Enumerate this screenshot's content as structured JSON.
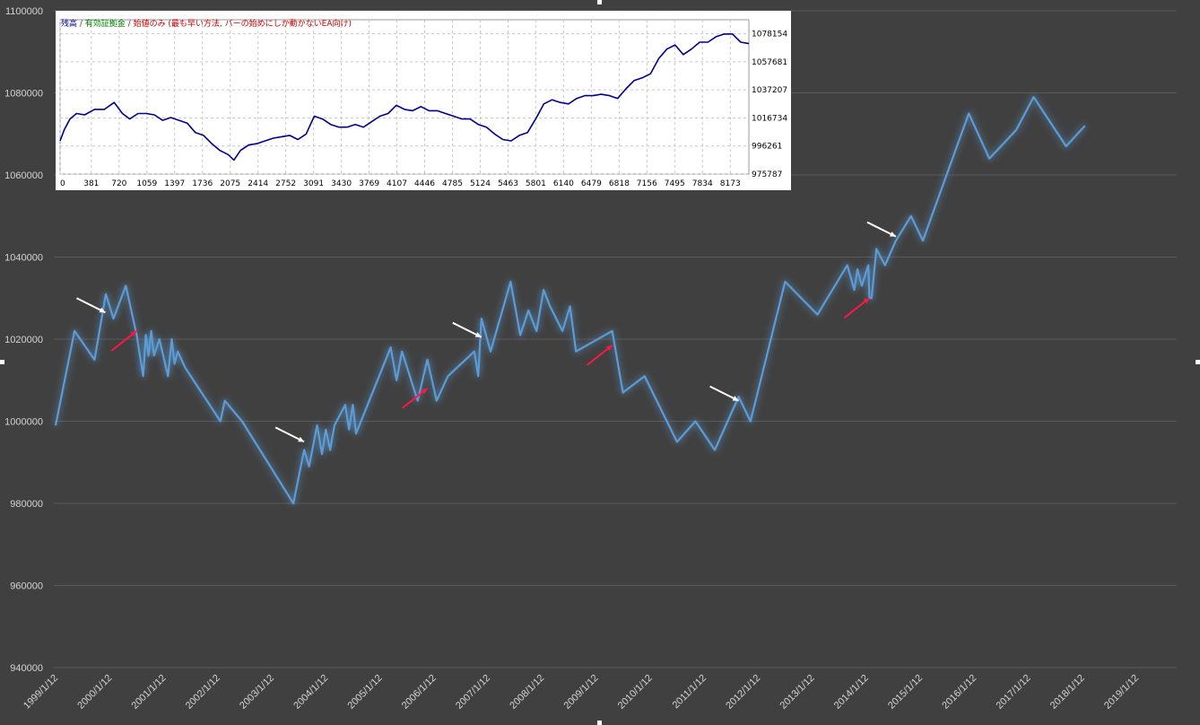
{
  "chart_data": [
    {
      "type": "line",
      "title": "",
      "xlabel": "",
      "ylabel": "",
      "ylim": [
        940000,
        1100000
      ],
      "y_ticks": [
        "940000",
        "960000",
        "980000",
        "1000000",
        "1020000",
        "1040000",
        "1060000",
        "1080000",
        "1100000"
      ],
      "categories": [
        "1999/1/12",
        "2000/1/12",
        "2001/1/12",
        "2002/1/12",
        "2003/1/12",
        "2004/1/12",
        "2005/1/12",
        "2006/1/12",
        "2007/1/12",
        "2008/1/12",
        "2009/1/12",
        "2010/1/12",
        "2011/1/12",
        "2012/1/12",
        "2013/1/12",
        "2014/1/12",
        "2015/1/12",
        "2016/1/12",
        "2017/1/12",
        "2018/1/12",
        "2019/1/12"
      ],
      "grid": "horizontal",
      "line_color": "#5b9bd5",
      "series": [
        {
          "x": [
            0,
            0.35,
            0.72,
            0.93,
            1.07,
            1.3,
            1.5,
            1.62,
            1.67,
            1.72,
            1.77,
            1.82,
            1.92,
            2.08,
            2.15,
            2.2,
            2.26,
            2.4,
            3.05,
            3.13,
            3.45,
            4.4,
            4.6,
            4.69,
            4.84,
            4.93,
            5.0,
            5.08,
            5.16,
            5.36,
            5.43,
            5.5,
            5.56,
            6.2,
            6.31,
            6.41,
            6.7,
            6.88,
            7.05,
            7.26,
            7.75,
            7.82,
            7.88,
            8.05,
            8.42,
            8.6,
            8.75,
            8.9,
            9.03,
            9.15,
            9.38,
            9.52,
            9.63,
            10.3,
            10.5,
            10.9,
            11.5,
            11.84,
            12.2,
            12.64,
            12.86,
            13.5,
            14.1,
            14.65,
            14.78,
            14.84,
            14.92,
            15.04,
            15.06,
            15.1,
            15.19,
            15.35,
            15.55,
            15.83,
            16.05,
            16.9,
            17.28,
            17.78,
            18.1,
            18.7,
            19.05
          ],
          "y": [
            999000,
            1022000,
            1015000,
            1031000,
            1025000,
            1033000,
            1021000,
            1011000,
            1021000,
            1016000,
            1022000,
            1016000,
            1020000,
            1011000,
            1020000,
            1014000,
            1017000,
            1013000,
            1000000,
            1005000,
            1000000,
            980000,
            993000,
            989000,
            999000,
            992000,
            998000,
            993000,
            999000,
            1004000,
            998000,
            1004000,
            997000,
            1018000,
            1010000,
            1017000,
            1005000,
            1015000,
            1005000,
            1011000,
            1017000,
            1011000,
            1025000,
            1017000,
            1034000,
            1021000,
            1027000,
            1022000,
            1032000,
            1028000,
            1022000,
            1028000,
            1017000,
            1022000,
            1007000,
            1011000,
            995000,
            1000000,
            993000,
            1006000,
            1000000,
            1034000,
            1026000,
            1038000,
            1032000,
            1037000,
            1033000,
            1038000,
            1030000,
            1030000,
            1042000,
            1038000,
            1044000,
            1050000,
            1044000,
            1075000,
            1064000,
            1071000,
            1079000,
            1067000,
            1072000
          ]
        }
      ],
      "annotations": [
        {
          "type": "arrow",
          "color": "#ffffff",
          "at_category": 0.92,
          "at_value": 1026500
        },
        {
          "type": "arrow",
          "color": "#ff1744",
          "at_category": 1.5,
          "at_value": 1022000
        },
        {
          "type": "arrow",
          "color": "#ffffff",
          "at_category": 4.6,
          "at_value": 995000
        },
        {
          "type": "arrow",
          "color": "#ff1744",
          "at_category": 6.88,
          "at_value": 1008000
        },
        {
          "type": "arrow",
          "color": "#ffffff",
          "at_category": 7.88,
          "at_value": 1020500
        },
        {
          "type": "arrow",
          "color": "#ff1744",
          "at_category": 10.3,
          "at_value": 1018500
        },
        {
          "type": "arrow",
          "color": "#ffffff",
          "at_category": 12.64,
          "at_value": 1005000
        },
        {
          "type": "arrow",
          "color": "#ff1744",
          "at_category": 15.06,
          "at_value": 1030000
        },
        {
          "type": "arrow",
          "color": "#ffffff",
          "at_category": 15.55,
          "at_value": 1045000
        }
      ]
    },
    {
      "type": "line",
      "title": "",
      "legend": [
        {
          "label": "残高",
          "color": "#00008b"
        },
        {
          "label": "有効証拠金",
          "color": "#008000"
        },
        {
          "label": "始値のみ (最も早い方法, バーの始めにしか動かないEA向け)",
          "color": "#cc0000"
        }
      ],
      "legend_separator": " / ",
      "x_ticks": [
        "0",
        "381",
        "720",
        "1059",
        "1397",
        "1736",
        "2075",
        "2414",
        "2752",
        "3091",
        "3430",
        "3769",
        "4107",
        "4446",
        "4785",
        "5124",
        "5463",
        "5801",
        "6140",
        "6479",
        "6818",
        "7156",
        "7495",
        "7834",
        "8173"
      ],
      "y_ticks": [
        "975787",
        "996261",
        "1016734",
        "1037207",
        "1057681",
        "1078154"
      ],
      "xlim": [
        0,
        8400
      ],
      "ylim": [
        975787,
        1088390
      ],
      "grid": "dashed",
      "series": [
        {
          "name": "残高",
          "color": "#00008b",
          "x": [
            0,
            50,
            120,
            200,
            300,
            420,
            540,
            660,
            760,
            850,
            950,
            1050,
            1150,
            1250,
            1350,
            1450,
            1550,
            1650,
            1750,
            1850,
            1950,
            2050,
            2120,
            2200,
            2300,
            2400,
            2500,
            2600,
            2700,
            2800,
            2900,
            3000,
            3100,
            3200,
            3300,
            3400,
            3500,
            3600,
            3700,
            3800,
            3900,
            4000,
            4100,
            4200,
            4300,
            4400,
            4500,
            4600,
            4700,
            4800,
            4900,
            5000,
            5100,
            5200,
            5300,
            5400,
            5500,
            5600,
            5700,
            5800,
            5900,
            6000,
            6100,
            6200,
            6300,
            6400,
            6500,
            6600,
            6700,
            6800,
            6900,
            7000,
            7100,
            7200,
            7300,
            7400,
            7500,
            7600,
            7700,
            7800,
            7900,
            8000,
            8100,
            8200,
            8300,
            8400
          ],
          "y": [
            1000000,
            1008000,
            1016000,
            1020000,
            1019000,
            1023000,
            1023000,
            1028000,
            1020000,
            1016000,
            1020000,
            1020000,
            1019000,
            1015000,
            1017000,
            1015000,
            1013000,
            1006000,
            1004000,
            998000,
            993000,
            990000,
            986000,
            993000,
            997000,
            998000,
            1000000,
            1002000,
            1003000,
            1004000,
            1001000,
            1005000,
            1018000,
            1016000,
            1012000,
            1010000,
            1010000,
            1012000,
            1010000,
            1014000,
            1018000,
            1020000,
            1026000,
            1023000,
            1022000,
            1025000,
            1022000,
            1022000,
            1020000,
            1018000,
            1016000,
            1016000,
            1012000,
            1010000,
            1005000,
            1001000,
            1000000,
            1004000,
            1006000,
            1016000,
            1027000,
            1030000,
            1028000,
            1027000,
            1031000,
            1033000,
            1033000,
            1034000,
            1033000,
            1031000,
            1038000,
            1044000,
            1046000,
            1049000,
            1060000,
            1067000,
            1070000,
            1063000,
            1067000,
            1072000,
            1072000,
            1076000,
            1078000,
            1078000,
            1072000,
            1071000
          ]
        }
      ]
    }
  ]
}
